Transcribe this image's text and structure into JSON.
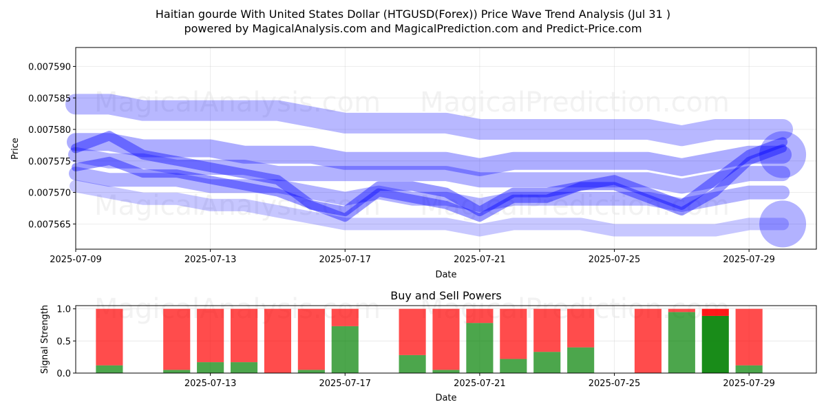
{
  "title_line1": "Haitian gourde With United States Dollar (HTGUSD(Forex)) Price Wave Trend Analysis (Jul 31 )",
  "title_line2": "powered by MagicalAnalysis.com and MagicalPrediction.com and Predict-Price.com",
  "watermarks": {
    "left": "MagicalAnalysis.com",
    "right": "MagicalPrediction.com"
  },
  "colors": {
    "wave": "#0000ff",
    "buy": "#008000",
    "sell": "#ff0000"
  },
  "chart_data": [
    {
      "type": "line",
      "title": "",
      "xlabel": "Date",
      "ylabel": "Price",
      "x_range": [
        "2025-07-09",
        "2025-07-31"
      ],
      "ylim": [
        0.007561,
        0.007593
      ],
      "x_ticks": [
        "2025-07-09",
        "2025-07-13",
        "2025-07-17",
        "2025-07-21",
        "2025-07-25",
        "2025-07-29"
      ],
      "y_ticks": [
        "0.007565",
        "0.007570",
        "0.007575",
        "0.007580",
        "0.007585",
        "0.007590"
      ],
      "grid": true,
      "x": [
        "2025-07-09",
        "2025-07-10",
        "2025-07-11",
        "2025-07-12",
        "2025-07-13",
        "2025-07-14",
        "2025-07-15",
        "2025-07-16",
        "2025-07-17",
        "2025-07-18",
        "2025-07-19",
        "2025-07-20",
        "2025-07-21",
        "2025-07-22",
        "2025-07-23",
        "2025-07-24",
        "2025-07-25",
        "2025-07-26",
        "2025-07-27",
        "2025-07-28",
        "2025-07-29",
        "2025-07-30"
      ],
      "series": [
        {
          "values": [
            0.007584,
            0.007584,
            0.007583,
            0.007583,
            0.007583,
            0.007583,
            0.007583,
            0.007582,
            0.007581,
            0.007581,
            0.007581,
            0.007581,
            0.00758,
            0.00758,
            0.00758,
            0.00758,
            0.00758,
            0.00758,
            0.007579,
            0.00758,
            0.00758,
            0.00758
          ]
        },
        {
          "values": [
            0.007578,
            0.007578,
            0.007577,
            0.007577,
            0.007577,
            0.007576,
            0.007576,
            0.007576,
            0.007575,
            0.007575,
            0.007575,
            0.007575,
            0.007574,
            0.007575,
            0.007575,
            0.007575,
            0.007575,
            0.007575,
            0.007574,
            0.007575,
            0.007576,
            0.007576
          ]
        },
        {
          "values": [
            0.007576,
            0.007575,
            0.007575,
            0.007574,
            0.007574,
            0.007574,
            0.007573,
            0.007573,
            0.007573,
            0.007573,
            0.007573,
            0.007573,
            0.007572,
            0.007572,
            0.007572,
            0.007572,
            0.007572,
            0.007572,
            0.007571,
            0.007572,
            0.007573,
            0.007573
          ]
        },
        {
          "values": [
            0.007573,
            0.007572,
            0.007572,
            0.007572,
            0.007571,
            0.007571,
            0.007571,
            0.00757,
            0.007569,
            0.00757,
            0.007569,
            0.007569,
            0.007568,
            0.007569,
            0.007569,
            0.007569,
            0.007569,
            0.007569,
            0.007568,
            0.007569,
            0.00757,
            0.00757
          ]
        },
        {
          "values": [
            0.007571,
            0.00757,
            0.007569,
            0.007569,
            0.007568,
            0.007568,
            0.007567,
            0.007566,
            0.007565,
            0.007565,
            0.007565,
            0.007565,
            0.007564,
            0.007565,
            0.007565,
            0.007565,
            0.007564,
            0.007564,
            0.007564,
            0.007564,
            0.007565,
            0.007565
          ]
        },
        {
          "values": [
            0.007577,
            0.007579,
            0.007576,
            0.007575,
            0.007574,
            0.007573,
            0.007572,
            0.007568,
            0.007567,
            0.007571,
            0.007571,
            0.00757,
            0.007567,
            0.00757,
            0.00757,
            0.007571,
            0.007572,
            0.00757,
            0.007568,
            0.007572,
            0.007576,
            0.007578
          ]
        },
        {
          "values": [
            0.007574,
            0.007575,
            0.007573,
            0.007573,
            0.007572,
            0.007571,
            0.00757,
            0.007568,
            0.007566,
            0.00757,
            0.007569,
            0.007568,
            0.007566,
            0.007569,
            0.007569,
            0.007571,
            0.007571,
            0.007569,
            0.007567,
            0.00757,
            0.007575,
            0.007577
          ]
        }
      ]
    },
    {
      "type": "bar",
      "title": "Buy and Sell Powers",
      "xlabel": "Date",
      "ylabel": "Signal Strength",
      "ylim": [
        0,
        1.05
      ],
      "y_ticks": [
        "0.0",
        "0.5",
        "1.0"
      ],
      "x_ticks": [
        "2025-07-13",
        "2025-07-17",
        "2025-07-21",
        "2025-07-25",
        "2025-07-29"
      ],
      "grid": true,
      "categories": [
        "2025-07-10",
        "2025-07-12",
        "2025-07-13",
        "2025-07-14",
        "2025-07-15",
        "2025-07-16",
        "2025-07-17",
        "2025-07-19",
        "2025-07-20",
        "2025-07-21",
        "2025-07-22",
        "2025-07-23",
        "2025-07-24",
        "2025-07-26",
        "2025-07-27",
        "2025-07-28",
        "2025-07-29"
      ],
      "series": [
        {
          "name": "Buy",
          "values": [
            0.12,
            0.05,
            0.17,
            0.17,
            0.0,
            0.05,
            0.73,
            0.28,
            0.05,
            0.78,
            0.22,
            0.33,
            0.4,
            0.0,
            0.95,
            0.89,
            0.12
          ]
        },
        {
          "name": "Sell",
          "values": [
            0.88,
            0.95,
            0.83,
            0.83,
            1.0,
            0.95,
            0.27,
            0.72,
            0.95,
            0.22,
            0.78,
            0.67,
            0.6,
            1.0,
            0.05,
            0.11,
            0.88
          ]
        }
      ]
    }
  ]
}
